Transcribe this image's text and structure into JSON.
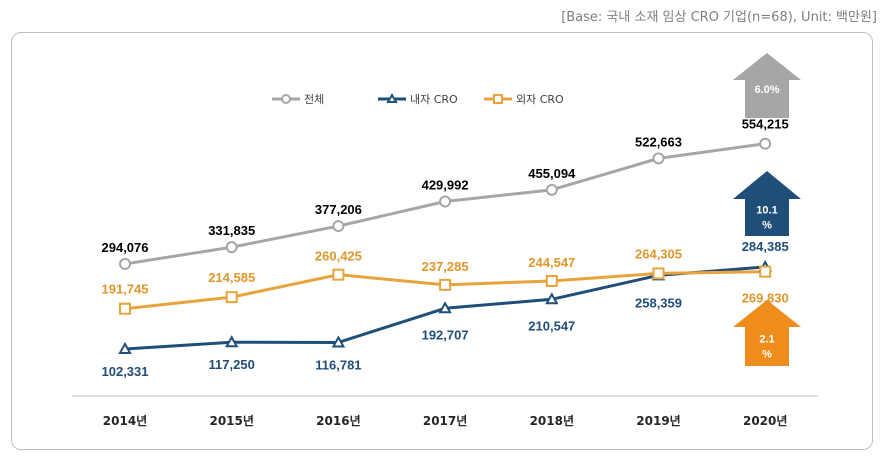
{
  "note": "[Base: 국내 소재 임상 CRO 기업(n=68), Unit: 백만원]",
  "chart_data": {
    "type": "line",
    "categories": [
      "2014년",
      "2015년",
      "2016년",
      "2017년",
      "2018년",
      "2019년",
      "2020년"
    ],
    "series": [
      {
        "name": "전체",
        "color": "#a6a6a6",
        "label_color": "#000000",
        "marker": "circle",
        "values": [
          294076,
          331835,
          377206,
          429992,
          455094,
          522663,
          554215
        ],
        "labels": [
          "294,076",
          "331,835",
          "377,206",
          "429,992",
          "455,094",
          "522,663",
          "554,215"
        ]
      },
      {
        "name": "내자 CRO",
        "color": "#1f4e79",
        "label_color": "#1f4e79",
        "marker": "triangle",
        "values": [
          102331,
          117250,
          116781,
          192707,
          210547,
          258359,
          284385
        ],
        "labels": [
          "102,331",
          "117,250",
          "116,781",
          "192,707",
          "210,547",
          "258,359",
          "284,385"
        ]
      },
      {
        "name": "외자 CRO",
        "color": "#e8a33c",
        "label_color": "#e0962c",
        "marker": "square",
        "values": [
          191745,
          214585,
          260425,
          237285,
          244547,
          264305,
          269830
        ],
        "labels": [
          "191,745",
          "214,585",
          "260,425",
          "237,285",
          "244,547",
          "264,305",
          "269,830"
        ]
      }
    ],
    "legend_position": "top-left",
    "grid": false,
    "growth_arrows": [
      {
        "series": "전체",
        "text": "6.0%",
        "color": "#a6a6a6"
      },
      {
        "series": "내자 CRO",
        "text": "10.1 %",
        "color": "#1f4e79"
      },
      {
        "series": "외자 CRO",
        "text": "2.1 %",
        "color": "#ee8c1c"
      }
    ]
  }
}
